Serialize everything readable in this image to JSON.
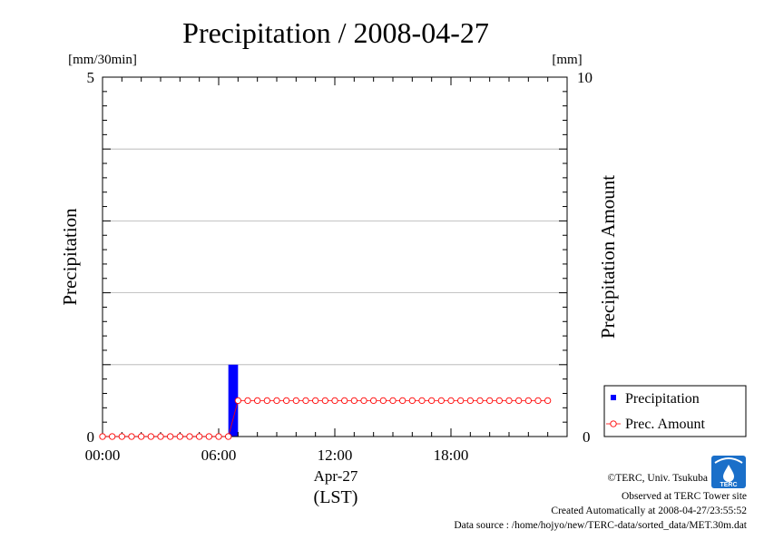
{
  "chart_data": {
    "type": "bar+line",
    "title": "Precipitation / 2008-04-27",
    "left_axis": {
      "label": "Precipitation",
      "unit": "[mm/30min]",
      "range": [
        0,
        5
      ],
      "tick_labels": [
        "0",
        "5"
      ]
    },
    "right_axis": {
      "label": "Precipitation Amount",
      "unit": "[mm]",
      "range": [
        0,
        10
      ],
      "tick_labels": [
        "0",
        "10"
      ]
    },
    "x_axis": {
      "range_hours": [
        0,
        24
      ],
      "tick_labels": [
        "00:00",
        "06:00",
        "12:00",
        "18:00"
      ],
      "date_label": "Apr-27",
      "zone_label": "(LST)"
    },
    "series": [
      {
        "name": "Precipitation",
        "type": "bar",
        "color": "#0000ff",
        "axis": "left",
        "bars": [
          {
            "start_hour": 6.5,
            "end_hour": 7.0,
            "value": 1.0
          }
        ]
      },
      {
        "name": "Prec. Amount",
        "type": "line",
        "color": "#ff0000",
        "axis": "right",
        "marker": "open-circle",
        "start_hour": 0,
        "step_hours": 0.5,
        "values": [
          0,
          0,
          0,
          0,
          0,
          0,
          0,
          0,
          0,
          0,
          0,
          0,
          0,
          0,
          1,
          1,
          1,
          1,
          1,
          1,
          1,
          1,
          1,
          1,
          1,
          1,
          1,
          1,
          1,
          1,
          1,
          1,
          1,
          1,
          1,
          1,
          1,
          1,
          1,
          1,
          1,
          1,
          1,
          1,
          1,
          1,
          1
        ]
      }
    ],
    "legend": {
      "position": "bottom-right",
      "items": [
        "Precipitation",
        "Prec. Amount"
      ]
    },
    "gridlines": "horizontal"
  },
  "credits": {
    "copyright": "©TERC, Univ. Tsukuba",
    "observed": "Observed at TERC Tower site",
    "created": "Created Automatically at 2008-04-27/23:55:52",
    "source": "Data source : /home/hojyo/new/TERC-data/sorted_data/MET.30m.dat",
    "logo_text": "TERC"
  }
}
